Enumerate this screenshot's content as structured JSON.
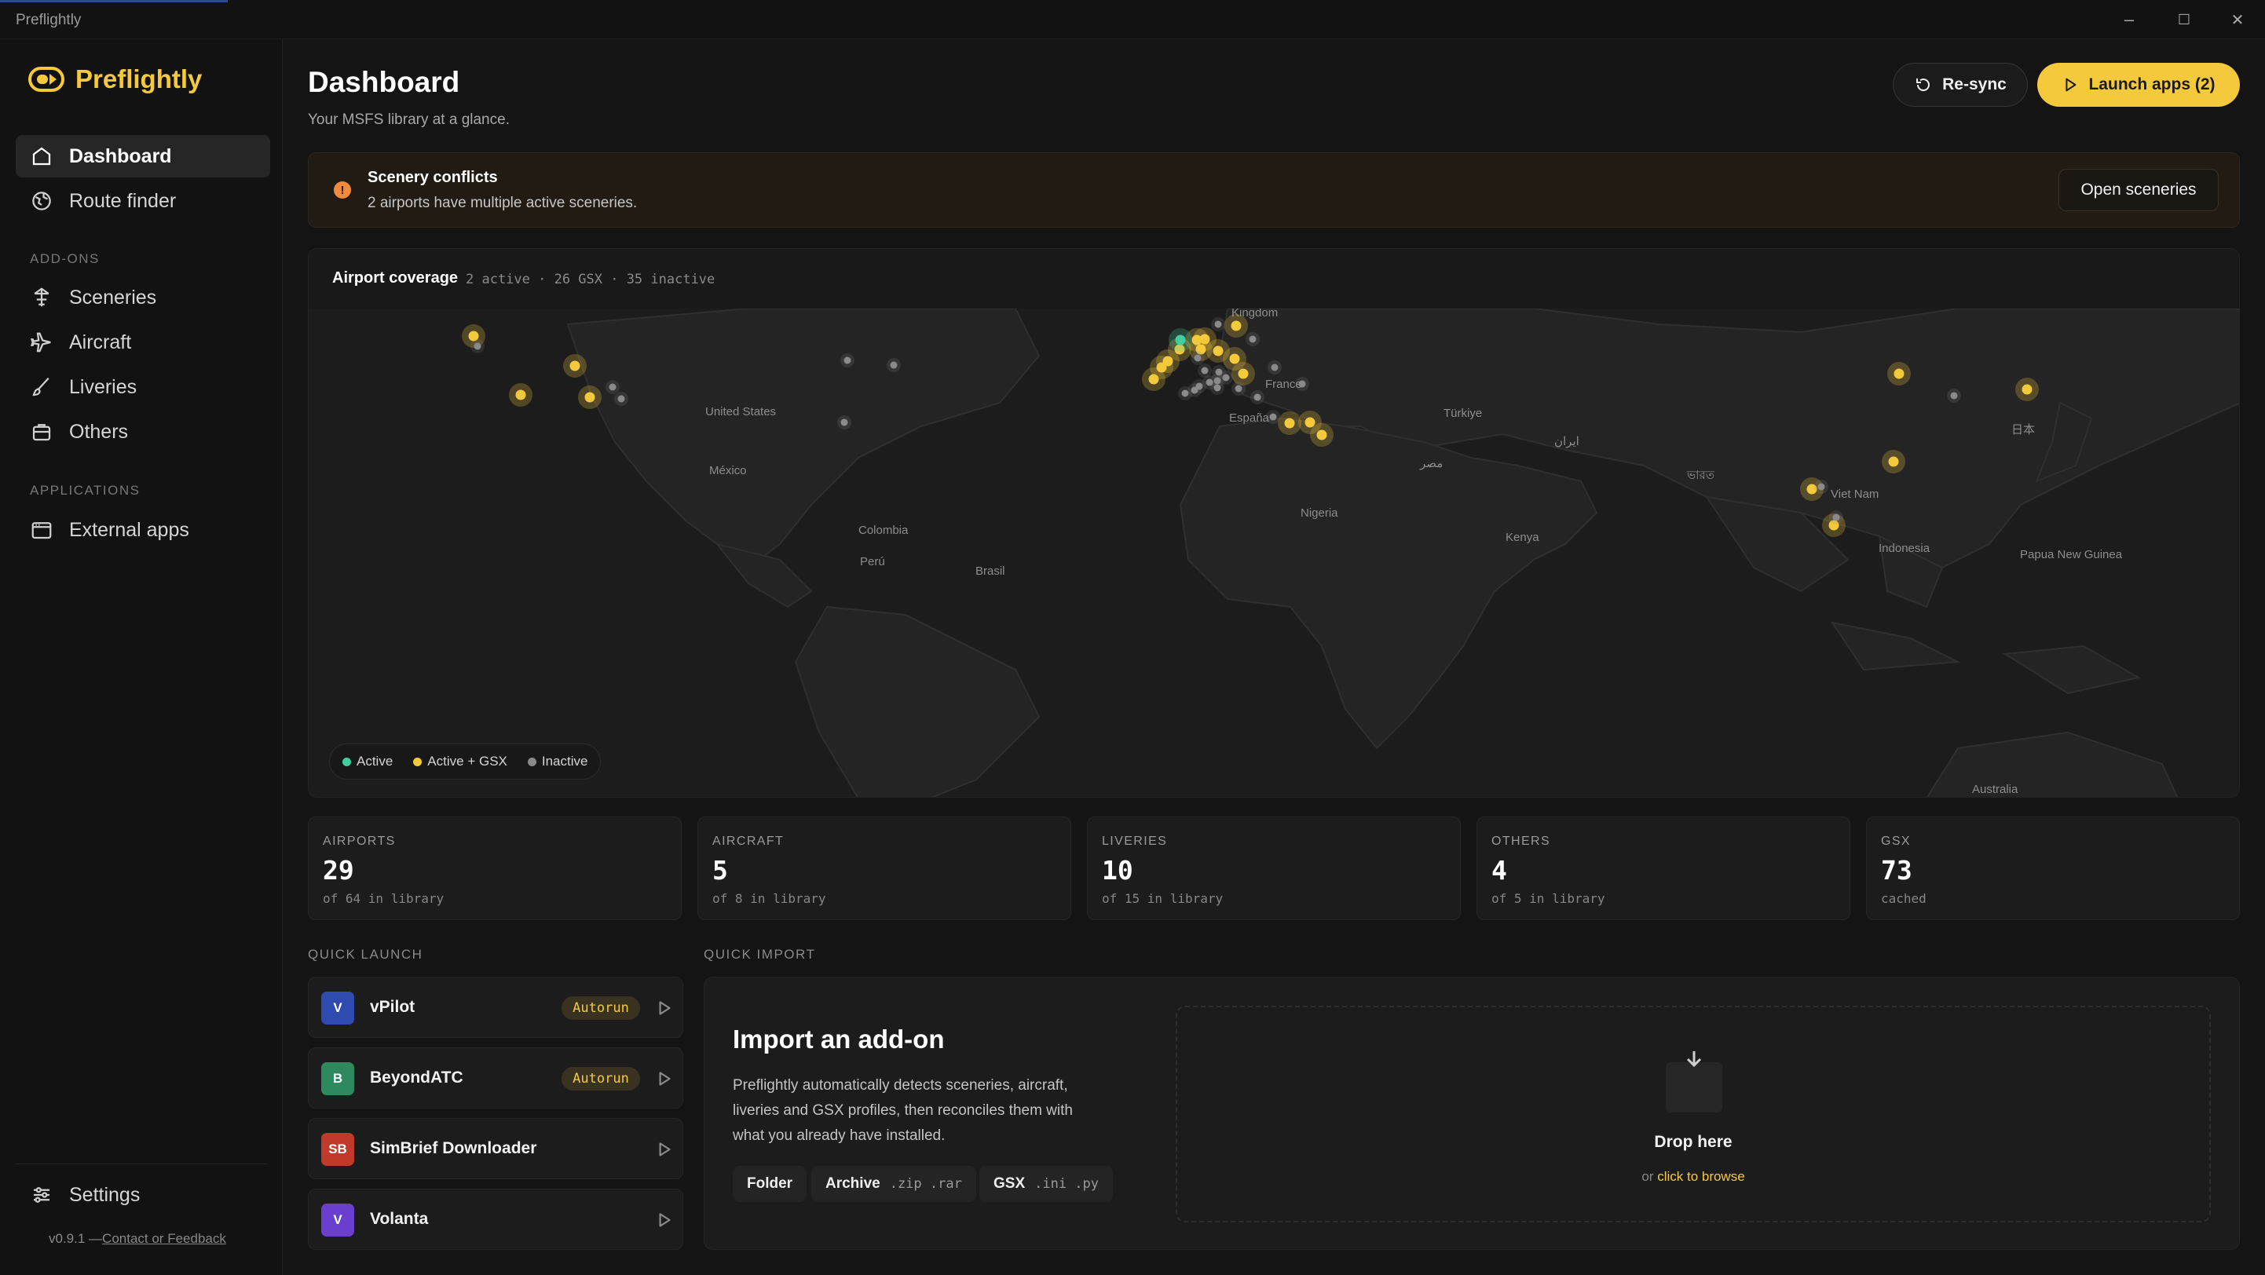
{
  "window": {
    "title": "Preflightly",
    "controls": {
      "minimize": "–",
      "maximize": "☐",
      "close": "✕"
    }
  },
  "brand": {
    "name": "Preflightly",
    "accent_color": "#f5c93c"
  },
  "sidebar": {
    "nav": [
      {
        "label": "Dashboard",
        "icon": "home-icon",
        "active": true
      },
      {
        "label": "Route finder",
        "icon": "globe-icon"
      }
    ],
    "addons_heading": "ADD-ONS",
    "addons": [
      {
        "label": "Sceneries",
        "icon": "scenery-icon"
      },
      {
        "label": "Aircraft",
        "icon": "plane-icon"
      },
      {
        "label": "Liveries",
        "icon": "brush-icon"
      },
      {
        "label": "Others",
        "icon": "box-icon"
      }
    ],
    "applications_heading": "APPLICATIONS",
    "applications": [
      {
        "label": "External apps",
        "icon": "window-icon"
      }
    ],
    "settings_label": "Settings",
    "version": "v0.9.1 —",
    "feedback_link": "Contact or Feedback"
  },
  "header": {
    "title": "Dashboard",
    "subtitle": "Your MSFS library at a glance.",
    "resync_label": "Re-sync",
    "launch_label": "Launch apps (2)"
  },
  "alert": {
    "title": "Scenery conflicts",
    "message": "2 airports have multiple active sceneries.",
    "action_label": "Open sceneries",
    "color": "#f08a3c"
  },
  "map": {
    "title": "Airport coverage",
    "stats": "2 active · 26 GSX · 35 inactive",
    "legend": {
      "active": "Active",
      "active_gsx": "Active + GSX",
      "inactive": "Inactive"
    },
    "colors": {
      "active": "#3fcf9f",
      "active_gsx": "#f5c93c",
      "inactive": "#8a8a8a"
    },
    "labels": [
      "Kingdom",
      "France",
      "España",
      "Türkiye",
      "United States",
      "México",
      "Colombia",
      "Perú",
      "Brasil",
      "Nigeria",
      "Kenya",
      "Viet Nam",
      "Indonesia",
      "Papua New Guinea",
      "Australia",
      "ایران",
      "مصر",
      "ভারত",
      "日本"
    ]
  },
  "stats": [
    {
      "label": "AIRPORTS",
      "value": "29",
      "sub": "of 64 in library"
    },
    {
      "label": "AIRCRAFT",
      "value": "5",
      "sub": "of 8 in library"
    },
    {
      "label": "LIVERIES",
      "value": "10",
      "sub": "of 15 in library"
    },
    {
      "label": "OTHERS",
      "value": "4",
      "sub": "of 5 in library"
    },
    {
      "label": "GSX",
      "value": "73",
      "sub": "cached"
    }
  ],
  "quick_launch": {
    "heading": "QUICK LAUNCH",
    "apps": [
      {
        "initials": "V",
        "name": "vPilot",
        "badge": "Autorun",
        "color": "#2f4bb0"
      },
      {
        "initials": "B",
        "name": "BeyondATC",
        "badge": "Autorun",
        "color": "#2e8a5e"
      },
      {
        "initials": "SB",
        "name": "SimBrief Downloader",
        "badge": "",
        "color": "#c0392b"
      },
      {
        "initials": "V",
        "name": "Volanta",
        "badge": "",
        "color": "#6a3fd0"
      }
    ]
  },
  "quick_import": {
    "heading": "QUICK IMPORT",
    "title": "Import an add-on",
    "description": "Preflightly automatically detects sceneries, aircraft, liveries and GSX profiles, then reconciles them with what you already have installed.",
    "chips": [
      {
        "label": "Folder",
        "ext": ""
      },
      {
        "label": "Archive",
        "ext": ".zip .rar"
      },
      {
        "label": "GSX",
        "ext": ".ini .py"
      }
    ],
    "drop_title": "Drop here",
    "drop_or": "or",
    "drop_browse": "click to browse"
  }
}
